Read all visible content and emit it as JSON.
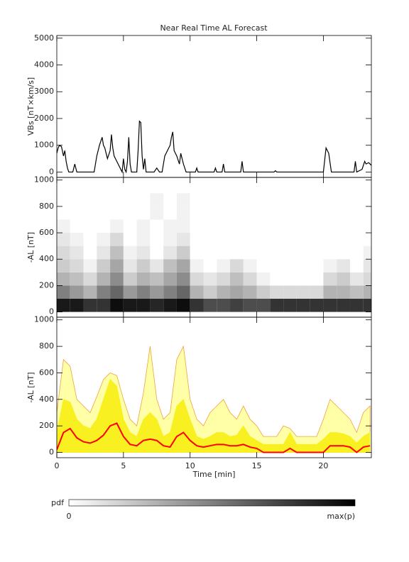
{
  "title": "Near Real Time AL Forecast",
  "colorbar": {
    "label": "pdf",
    "min_label": 0,
    "max_label": "max(p)"
  },
  "chart_data": [
    {
      "type": "line",
      "ylabel": "VBs [nT×km/s]",
      "xlim": [
        0,
        23.6
      ],
      "xticks": [
        0,
        5,
        10,
        15,
        20
      ],
      "ylim": [
        -200,
        5100
      ],
      "yticks": [
        0,
        1000,
        2000,
        3000,
        4000,
        5000
      ],
      "x": [
        0,
        0.1,
        0.2,
        0.35,
        0.5,
        0.6,
        0.7,
        0.8,
        0.9,
        1.2,
        1.35,
        1.5,
        2.8,
        3.0,
        3.2,
        3.4,
        3.5,
        3.6,
        3.8,
        4.0,
        4.1,
        4.2,
        4.3,
        4.5,
        4.7,
        4.9,
        5.0,
        5.1,
        5.2,
        5.3,
        5.4,
        5.5,
        5.6,
        6.0,
        6.1,
        6.2,
        6.3,
        6.4,
        6.5,
        6.6,
        6.7,
        7.3,
        7.5,
        7.7,
        7.9,
        8.1,
        8.3,
        8.5,
        8.6,
        8.7,
        8.8,
        9.0,
        9.2,
        9.3,
        9.5,
        9.7,
        10.4,
        10.5,
        10.6,
        11.8,
        11.9,
        12.0,
        12.4,
        12.5,
        12.6,
        13.8,
        13.9,
        14.0,
        16.3,
        16.4,
        16.5,
        20.0,
        20.2,
        20.4,
        20.6,
        22.3,
        22.4,
        22.5,
        22.9,
        23.1,
        23.2,
        23.4,
        23.6
      ],
      "series": [
        {
          "color": "#000000",
          "values": [
            700,
            900,
            1000,
            950,
            600,
            800,
            400,
            150,
            0,
            0,
            300,
            0,
            0,
            600,
            1000,
            1300,
            1000,
            900,
            500,
            800,
            1400,
            900,
            600,
            400,
            200,
            0,
            500,
            100,
            0,
            400,
            1300,
            300,
            0,
            0,
            800,
            1900,
            1850,
            600,
            100,
            500,
            0,
            0,
            150,
            0,
            0,
            600,
            800,
            1000,
            1300,
            1500,
            800,
            600,
            300,
            700,
            300,
            0,
            0,
            150,
            0,
            0,
            150,
            0,
            0,
            300,
            0,
            0,
            400,
            0,
            0,
            50,
            0,
            0,
            900,
            700,
            0,
            0,
            400,
            0,
            100,
            400,
            300,
            350,
            250
          ]
        }
      ]
    },
    {
      "type": "heatmap",
      "ylabel": "-AL [nT]",
      "xlim": [
        0,
        23.6
      ],
      "xticks": [
        0,
        5,
        10,
        15,
        20
      ],
      "ylim": [
        -40,
        1020
      ],
      "yticks": [
        0,
        200,
        400,
        600,
        800,
        1000
      ],
      "xbins": [
        0,
        1,
        2,
        3,
        4,
        5,
        6,
        7,
        8,
        9,
        10,
        11,
        12,
        13,
        14,
        15,
        16,
        17,
        18,
        19,
        20,
        21,
        22,
        23,
        24
      ],
      "ybins": [
        0,
        100,
        200,
        300,
        400,
        500,
        600,
        700,
        800,
        900
      ],
      "z": [
        [
          0.9,
          0.9,
          0.8,
          0.8,
          0.95,
          0.9,
          0.9,
          0.85,
          0.9,
          0.95,
          0.8,
          0.7,
          0.7,
          0.75,
          0.7,
          0.7,
          0.8,
          0.8,
          0.8,
          0.8,
          0.8,
          0.8,
          0.8,
          0.8
        ],
        [
          0.5,
          0.4,
          0.3,
          0.5,
          0.6,
          0.4,
          0.5,
          0.4,
          0.5,
          0.6,
          0.3,
          0.2,
          0.3,
          0.35,
          0.3,
          0.2,
          0.15,
          0.15,
          0.15,
          0.15,
          0.3,
          0.3,
          0.25,
          0.3
        ],
        [
          0.3,
          0.25,
          0.15,
          0.3,
          0.45,
          0.2,
          0.3,
          0.25,
          0.35,
          0.45,
          0.15,
          0.1,
          0.15,
          0.25,
          0.15,
          0.05,
          0,
          0,
          0,
          0,
          0.15,
          0.2,
          0.1,
          0.15
        ],
        [
          0.2,
          0.15,
          0.05,
          0.2,
          0.35,
          0.1,
          0.2,
          0.1,
          0.25,
          0.35,
          0.05,
          0,
          0.05,
          0.15,
          0.05,
          0,
          0,
          0,
          0,
          0,
          0.05,
          0.1,
          0,
          0.1
        ],
        [
          0.15,
          0.1,
          0,
          0.1,
          0.25,
          0.05,
          0.1,
          0,
          0.1,
          0.2,
          0,
          0,
          0,
          0,
          0,
          0,
          0,
          0,
          0,
          0,
          0,
          0,
          0,
          0.05
        ],
        [
          0.1,
          0.05,
          0,
          0.05,
          0.15,
          0,
          0.05,
          0,
          0.05,
          0.1,
          0,
          0,
          0,
          0,
          0,
          0,
          0,
          0,
          0,
          0,
          0,
          0,
          0,
          0
        ],
        [
          0.05,
          0,
          0,
          0,
          0.05,
          0,
          0.05,
          0,
          0.05,
          0.05,
          0,
          0,
          0,
          0,
          0,
          0,
          0,
          0,
          0,
          0,
          0,
          0,
          0,
          0
        ],
        [
          0,
          0,
          0,
          0,
          0,
          0,
          0,
          0.05,
          0,
          0.05,
          0,
          0,
          0,
          0,
          0,
          0,
          0,
          0,
          0,
          0,
          0,
          0,
          0,
          0
        ],
        [
          0,
          0,
          0,
          0,
          0,
          0,
          0,
          0.05,
          0,
          0.05,
          0,
          0,
          0,
          0,
          0,
          0,
          0,
          0,
          0,
          0,
          0,
          0,
          0,
          0
        ]
      ]
    },
    {
      "type": "area",
      "ylabel": "-AL [nT]",
      "xlabel": "Time [min]",
      "xlim": [
        0,
        23.6
      ],
      "xticks": [
        0,
        5,
        10,
        15,
        20
      ],
      "ylim": [
        -40,
        1020
      ],
      "yticks": [
        0,
        200,
        400,
        600,
        800,
        1000
      ],
      "x": [
        0,
        0.5,
        1,
        1.5,
        2,
        2.5,
        3,
        3.5,
        4,
        4.5,
        5,
        5.5,
        6,
        6.5,
        7,
        7.5,
        8,
        8.5,
        9,
        9.5,
        10,
        10.5,
        11,
        11.5,
        12,
        12.5,
        13,
        13.5,
        14,
        14.5,
        15,
        15.5,
        16,
        16.5,
        17,
        17.5,
        18,
        18.5,
        19,
        19.5,
        20,
        20.5,
        21,
        21.5,
        22,
        22.5,
        23,
        23.5
      ],
      "series": [
        {
          "style": "area",
          "color": "#ffffa8",
          "edge": "#f0a040",
          "values": [
            300,
            700,
            650,
            400,
            350,
            300,
            420,
            550,
            600,
            580,
            400,
            250,
            200,
            450,
            800,
            400,
            250,
            300,
            700,
            800,
            400,
            250,
            200,
            300,
            350,
            400,
            300,
            250,
            350,
            250,
            200,
            120,
            120,
            120,
            200,
            180,
            120,
            120,
            120,
            120,
            250,
            400,
            350,
            300,
            250,
            150,
            300,
            350
          ]
        },
        {
          "style": "area",
          "color": "#f8f020",
          "edge": "#f8f020",
          "values": [
            150,
            400,
            380,
            250,
            200,
            180,
            250,
            400,
            550,
            500,
            250,
            150,
            120,
            250,
            300,
            250,
            120,
            150,
            350,
            400,
            250,
            120,
            100,
            120,
            150,
            150,
            120,
            130,
            200,
            120,
            90,
            60,
            60,
            60,
            60,
            150,
            60,
            60,
            60,
            60,
            100,
            150,
            150,
            140,
            120,
            70,
            120,
            150
          ]
        },
        {
          "style": "line",
          "color": "#ff0000",
          "values": [
            20,
            150,
            180,
            110,
            80,
            70,
            90,
            130,
            200,
            220,
            120,
            60,
            50,
            90,
            100,
            90,
            50,
            40,
            120,
            150,
            90,
            50,
            40,
            50,
            60,
            60,
            50,
            50,
            60,
            40,
            30,
            0,
            0,
            0,
            0,
            30,
            0,
            0,
            0,
            0,
            0,
            50,
            50,
            50,
            40,
            0,
            40,
            50
          ]
        }
      ]
    }
  ]
}
